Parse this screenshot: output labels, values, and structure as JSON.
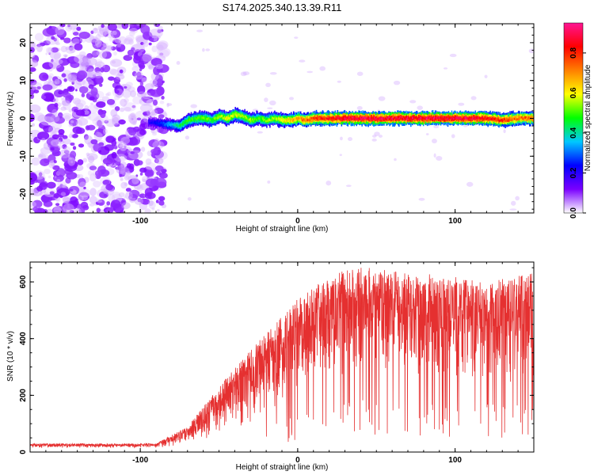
{
  "title": "S174.2025.340.13.39.R11",
  "chart_data": [
    {
      "type": "heatmap",
      "xlabel": "Height of straight line (km)",
      "ylabel": "Frequency (Hz)",
      "xlim": [
        -170,
        150
      ],
      "ylim": [
        -25,
        25
      ],
      "x_ticks": [
        -100,
        0,
        100
      ],
      "x_tick_labels": [
        "-100",
        "0",
        "100"
      ],
      "y_ticks": [
        -20,
        -10,
        0,
        10,
        20
      ],
      "y_tick_labels": [
        "-20",
        "-10",
        "0",
        "10",
        "20"
      ],
      "noise_region_x": [
        -170,
        -85
      ],
      "signal_start_x": -95,
      "signal_ridge": {
        "x": [
          -95,
          -85,
          -75,
          -70,
          -65,
          -60,
          -55,
          -50,
          -45,
          -40,
          -35,
          -30,
          -25,
          -20,
          -15,
          -10,
          -5,
          0,
          5,
          10,
          20,
          30,
          50,
          70,
          90,
          110,
          120,
          130,
          140,
          150
        ],
        "y": [
          -1.0,
          -1.5,
          -2.0,
          -0.5,
          0.0,
          0.0,
          -0.5,
          0.5,
          0.0,
          1.0,
          0.5,
          -0.5,
          0.0,
          -0.5,
          0.0,
          -0.5,
          -0.5,
          0.0,
          -0.5,
          0.0,
          0.0,
          0.0,
          0.0,
          0.0,
          0.0,
          0.0,
          0.0,
          -0.5,
          0.0,
          0.0
        ],
        "amplitude": [
          0.2,
          0.3,
          0.45,
          0.5,
          0.5,
          0.55,
          0.5,
          0.55,
          0.6,
          0.6,
          0.55,
          0.55,
          0.5,
          0.55,
          0.55,
          0.6,
          0.65,
          0.7,
          0.75,
          0.8,
          0.85,
          0.9,
          0.9,
          0.9,
          0.9,
          0.9,
          0.85,
          0.8,
          0.75,
          0.75
        ]
      },
      "colorbar": {
        "label": "Normalized spectral amplitude",
        "range": [
          0.0,
          0.95
        ],
        "ticks": [
          0.0,
          0.2,
          0.4,
          0.6,
          0.8
        ],
        "tick_labels": [
          "0.0",
          "0.2",
          "0.4",
          "0.6",
          "0.8"
        ],
        "colors": [
          "#ffffff",
          "#7a00ff",
          "#0000ff",
          "#00c8ff",
          "#00ff00",
          "#ffff00",
          "#ff8000",
          "#ff0000",
          "#ff1493"
        ]
      }
    },
    {
      "type": "line",
      "xlabel": "Height of straight line (km)",
      "ylabel": "SNR (10 * v/v)",
      "xlim": [
        -170,
        150
      ],
      "ylim": [
        0,
        670
      ],
      "x_ticks": [
        -100,
        0,
        100
      ],
      "x_tick_labels": [
        "-100",
        "0",
        "100"
      ],
      "y_ticks": [
        0,
        200,
        400,
        600
      ],
      "y_tick_labels": [
        "0",
        "200",
        "400",
        "600"
      ],
      "series_color": "#e53030",
      "envelope": {
        "x": [
          -170,
          -120,
          -90,
          -80,
          -70,
          -60,
          -50,
          -40,
          -30,
          -20,
          -10,
          0,
          10,
          20,
          30,
          40,
          50,
          60,
          80,
          100,
          120,
          140,
          150
        ],
        "baseline": [
          15,
          15,
          15,
          20,
          30,
          40,
          60,
          80,
          100,
          130,
          160,
          200,
          230,
          260,
          260,
          270,
          270,
          270,
          260,
          250,
          240,
          240,
          240
        ],
        "peak": [
          30,
          30,
          30,
          60,
          90,
          160,
          230,
          300,
          360,
          420,
          480,
          540,
          580,
          620,
          640,
          650,
          650,
          640,
          630,
          620,
          600,
          620,
          640
        ]
      }
    }
  ]
}
